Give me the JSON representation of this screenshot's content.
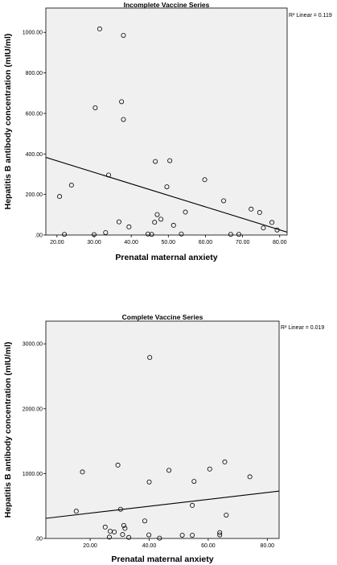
{
  "chart_data": [
    {
      "type": "scatter",
      "title": "Incomplete Vaccine Series",
      "xlabel": "Prenatal maternal anxiety",
      "ylabel": "Hepatitis B antibody concentration (mIU/ml)",
      "fit_label": "R² Linear = 0.119",
      "xlim": [
        17,
        82
      ],
      "ylim": [
        0,
        1120
      ],
      "x_ticks": [
        20,
        30,
        40,
        50,
        60,
        70,
        80
      ],
      "x_tick_labels": [
        "20.00",
        "30.00",
        "40.00",
        "50.00",
        "60.00",
        "70.00",
        "80.00"
      ],
      "y_ticks": [
        0,
        200,
        400,
        600,
        800,
        1000
      ],
      "y_tick_labels": [
        ".00",
        "200.00",
        "400.00",
        "600.00",
        "800.00",
        "1000.00"
      ],
      "points": [
        {
          "x": 31.5,
          "y": 1017
        },
        {
          "x": 37.9,
          "y": 985
        },
        {
          "x": 30.3,
          "y": 628
        },
        {
          "x": 37.4,
          "y": 658
        },
        {
          "x": 37.9,
          "y": 570
        },
        {
          "x": 46.5,
          "y": 363
        },
        {
          "x": 50.4,
          "y": 367
        },
        {
          "x": 33.9,
          "y": 296
        },
        {
          "x": 23.9,
          "y": 246
        },
        {
          "x": 20.7,
          "y": 190
        },
        {
          "x": 59.8,
          "y": 273
        },
        {
          "x": 49.6,
          "y": 238
        },
        {
          "x": 64.9,
          "y": 169
        },
        {
          "x": 72.3,
          "y": 128
        },
        {
          "x": 74.6,
          "y": 111
        },
        {
          "x": 54.6,
          "y": 113
        },
        {
          "x": 47.0,
          "y": 101
        },
        {
          "x": 48.0,
          "y": 78
        },
        {
          "x": 46.3,
          "y": 63
        },
        {
          "x": 36.7,
          "y": 65
        },
        {
          "x": 39.4,
          "y": 40
        },
        {
          "x": 51.4,
          "y": 48
        },
        {
          "x": 77.9,
          "y": 62
        },
        {
          "x": 75.6,
          "y": 35
        },
        {
          "x": 79.3,
          "y": 25
        },
        {
          "x": 33.1,
          "y": 12
        },
        {
          "x": 22.0,
          "y": 3
        },
        {
          "x": 30.0,
          "y": 2
        },
        {
          "x": 44.5,
          "y": 5
        },
        {
          "x": 45.5,
          "y": 3
        },
        {
          "x": 53.5,
          "y": 5
        },
        {
          "x": 66.8,
          "y": 3
        },
        {
          "x": 69.0,
          "y": 3
        }
      ],
      "fit": {
        "x": [
          17,
          82
        ],
        "y": [
          383,
          14
        ]
      }
    },
    {
      "type": "scatter",
      "title": "Complete Vaccine Series",
      "xlabel": "Prenatal maternal anxiety",
      "ylabel": "Hepatitis B antibody concentration (mIU/ml)",
      "fit_label": "R² Linear = 0.019",
      "xlim": [
        5,
        84
      ],
      "ylim": [
        0,
        3350
      ],
      "x_ticks": [
        20,
        40,
        60,
        80
      ],
      "x_tick_labels": [
        "20.00",
        "40.00",
        "60.00",
        "80.00"
      ],
      "y_ticks": [
        0,
        1000,
        2000,
        3000
      ],
      "y_tick_labels": [
        ".00",
        "1000.00",
        "2000.00",
        "3000.00"
      ],
      "points": [
        {
          "x": 40.2,
          "y": 2790
        },
        {
          "x": 17.4,
          "y": 1025
        },
        {
          "x": 29.4,
          "y": 1130
        },
        {
          "x": 40.0,
          "y": 870
        },
        {
          "x": 46.7,
          "y": 1050
        },
        {
          "x": 55.2,
          "y": 880
        },
        {
          "x": 60.5,
          "y": 1070
        },
        {
          "x": 65.6,
          "y": 1180
        },
        {
          "x": 74.1,
          "y": 950
        },
        {
          "x": 15.3,
          "y": 420
        },
        {
          "x": 30.3,
          "y": 450
        },
        {
          "x": 38.5,
          "y": 270
        },
        {
          "x": 54.6,
          "y": 510
        },
        {
          "x": 66.1,
          "y": 360
        },
        {
          "x": 25.1,
          "y": 175
        },
        {
          "x": 26.8,
          "y": 110
        },
        {
          "x": 28.2,
          "y": 100
        },
        {
          "x": 31.4,
          "y": 200
        },
        {
          "x": 31.8,
          "y": 155
        },
        {
          "x": 31.0,
          "y": 60
        },
        {
          "x": 26.5,
          "y": 20
        },
        {
          "x": 33.1,
          "y": 15
        },
        {
          "x": 39.9,
          "y": 55
        },
        {
          "x": 43.5,
          "y": 5
        },
        {
          "x": 51.2,
          "y": 50
        },
        {
          "x": 54.6,
          "y": 50
        },
        {
          "x": 63.9,
          "y": 90
        },
        {
          "x": 63.9,
          "y": 55
        }
      ],
      "fit": {
        "x": [
          5,
          84
        ],
        "y": [
          310,
          730
        ]
      }
    }
  ]
}
